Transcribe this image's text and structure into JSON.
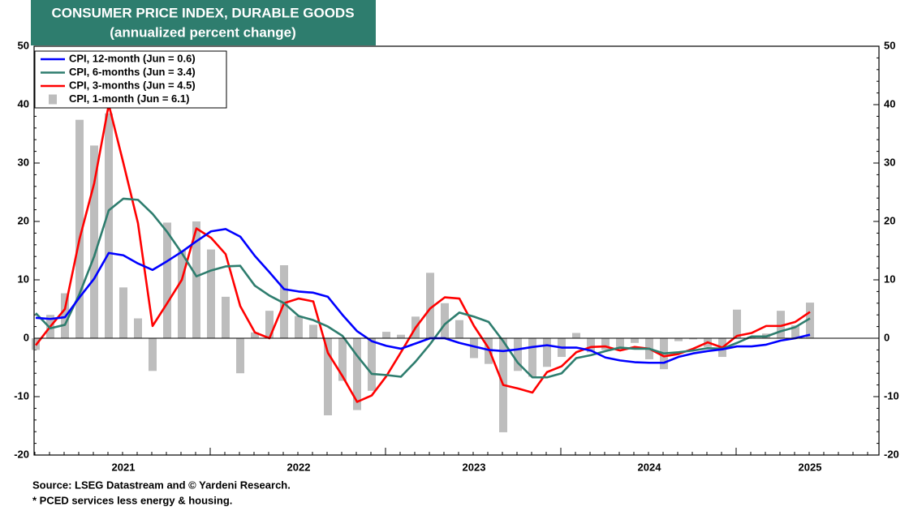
{
  "chart_data": {
    "type": "combo",
    "title": "CONSUMER PRICE INDEX, DURABLE GOODS",
    "subtitle": "(annualized percent change)",
    "source": "Source: LSEG Datastream and © Yardeni Research.",
    "note": "* PCED services less energy & housing.",
    "categories": [
      null,
      null,
      null,
      null,
      null,
      null,
      "2021",
      null,
      null,
      null,
      null,
      null,
      null,
      null,
      null,
      null,
      null,
      null,
      "2022",
      null,
      null,
      null,
      null,
      null,
      null,
      null,
      null,
      null,
      null,
      null,
      "2023",
      null,
      null,
      null,
      null,
      null,
      null,
      null,
      null,
      null,
      null,
      null,
      "2024",
      null,
      null,
      null,
      null,
      null,
      null,
      null,
      null,
      null,
      null,
      "2025"
    ],
    "ylim": [
      -20,
      50
    ],
    "yticks": [
      -20,
      -10,
      0,
      10,
      20,
      30,
      40,
      50
    ],
    "legend": "upper left",
    "series": [
      {
        "name": "CPI, 12-month (Jun = 0.6)",
        "type": "line",
        "color": "#0000ff",
        "values": [
          3.5,
          3.3,
          3.6,
          7,
          10.2,
          14.6,
          14.2,
          12.8,
          11.7,
          13.2,
          14.8,
          16.6,
          18.3,
          18.7,
          17.4,
          14.1,
          11.3,
          8.4,
          8,
          7.8,
          7.1,
          4,
          1.2,
          -0.5,
          -1.3,
          -1.8,
          -0.9,
          0,
          0,
          -0.8,
          -1.4,
          -2,
          -2.2,
          -1.9,
          -1.5,
          -1.2,
          -1.6,
          -1.6,
          -2.1,
          -3.3,
          -3.8,
          -4.1,
          -4.2,
          -4.2,
          -3.2,
          -2.6,
          -2.2,
          -1.9,
          -1.4,
          -1.4,
          -1.1,
          -0.4,
          0,
          0.6
        ]
      },
      {
        "name": "CPI, 6-months (Jun = 3.4)",
        "type": "line",
        "color": "#2e7d6e",
        "values": [
          4.3,
          1.7,
          2.3,
          7.6,
          14,
          21.9,
          23.9,
          23.7,
          21.3,
          18.2,
          14.6,
          10.6,
          11.6,
          12.3,
          12.4,
          9,
          7.3,
          6,
          3.8,
          3.1,
          2,
          0.4,
          -3,
          -6.1,
          -6.3,
          -6.6,
          -4,
          -1,
          2.4,
          4.4,
          3.7,
          2.8,
          -0.5,
          -4.2,
          -6.7,
          -6.7,
          -6,
          -3.4,
          -2.9,
          -2.2,
          -1.6,
          -1.8,
          -1.8,
          -2.6,
          -2.4,
          -2.1,
          -1.7,
          -1.8,
          -0.8,
          0.3,
          0.3,
          1.2,
          1.9,
          3.4
        ]
      },
      {
        "name": "CPI, 3-months (Jun = 4.5)",
        "type": "line",
        "color": "#ff0000",
        "values": [
          -1.2,
          2,
          5,
          17,
          26.5,
          40,
          30,
          19.7,
          2.1,
          6,
          10,
          18.8,
          17.2,
          14.4,
          5.5,
          1,
          0,
          6,
          6.8,
          6.3,
          -2.5,
          -6.5,
          -10.9,
          -9.8,
          -6.5,
          -2.4,
          1.8,
          5.1,
          7,
          6.8,
          2.1,
          -1.7,
          -8,
          -8.6,
          -9.3,
          -5.8,
          -4.8,
          -2.4,
          -1.5,
          -1.4,
          -2.1,
          -1.5,
          -1.8,
          -3.1,
          -2.7,
          -1.8,
          -0.7,
          -1.6,
          0.4,
          0.9,
          2.1,
          2.1,
          2.8,
          4.5
        ]
      },
      {
        "name": "CPI, 1-month (Jun = 6.1)",
        "type": "bar",
        "color": "#bdbdbd",
        "values": [
          -2,
          4,
          7.7,
          37.4,
          33,
          38.5,
          8.7,
          3.4,
          -5.6,
          19.8,
          15,
          20,
          15.2,
          7.1,
          -6,
          1,
          4.7,
          12.5,
          3.8,
          2.3,
          -13.2,
          -7.3,
          -12.3,
          -9,
          1.1,
          0.6,
          3.7,
          11.2,
          6,
          3.1,
          -3.4,
          -4.4,
          -16.1,
          -5.6,
          -6.6,
          -4.9,
          -3.2,
          0.9,
          -2.4,
          -2,
          -2,
          -0.8,
          -3.6,
          -5.3,
          -0.5,
          -0.2,
          -1.5,
          -3.2,
          4.9,
          0.3,
          0.8,
          4.7,
          2.2,
          6.1
        ]
      }
    ]
  }
}
